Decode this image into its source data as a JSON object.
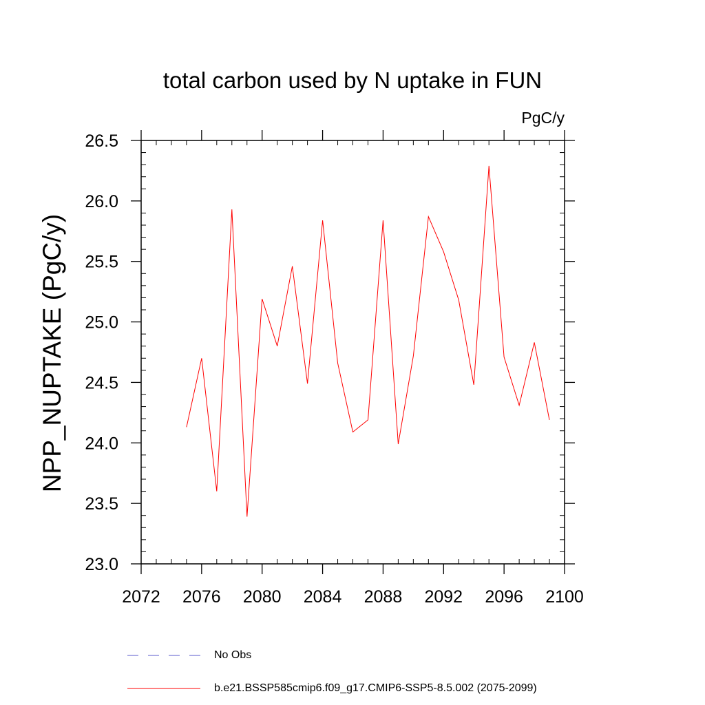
{
  "chart_data": {
    "type": "line",
    "title": "total carbon used by N uptake in FUN",
    "units_label": "PgC/y",
    "xlabel": "",
    "ylabel": "NPP_NUPTAKE  (PgC/y)",
    "xlim": [
      2072,
      2100
    ],
    "ylim": [
      23.0,
      26.5
    ],
    "x_ticks": [
      "2072",
      "2076",
      "2080",
      "2084",
      "2088",
      "2092",
      "2096",
      "2100"
    ],
    "y_ticks": [
      "23.0",
      "23.5",
      "24.0",
      "24.5",
      "25.0",
      "25.5",
      "26.0",
      "26.5"
    ],
    "grid": false,
    "legend_placement": "bottom",
    "series": [
      {
        "name": "b.e21.BSSP585cmip6.f09_g17.CMIP6-SSP5-8.5.002 (2075-2099)",
        "color": "#ff0000",
        "x": [
          2075,
          2076,
          2077,
          2078,
          2079,
          2080,
          2081,
          2082,
          2083,
          2084,
          2085,
          2086,
          2087,
          2088,
          2089,
          2090,
          2091,
          2092,
          2093,
          2094,
          2095,
          2096,
          2097,
          2098,
          2099
        ],
        "y": [
          24.13,
          24.7,
          23.6,
          25.93,
          23.39,
          25.19,
          24.8,
          25.46,
          24.49,
          25.84,
          24.66,
          24.09,
          24.19,
          25.84,
          23.99,
          24.72,
          25.87,
          25.58,
          25.18,
          24.48,
          26.29,
          24.71,
          24.31,
          24.83,
          24.19
        ]
      }
    ]
  },
  "legend": [
    {
      "label": "No Obs",
      "color": "#5a5acd",
      "dash": "dashed"
    },
    {
      "label": "b.e21.BSSP585cmip6.f09_g17.CMIP6-SSP5-8.5.002 (2075-2099)",
      "color": "#ff0000",
      "dash": "solid"
    }
  ]
}
